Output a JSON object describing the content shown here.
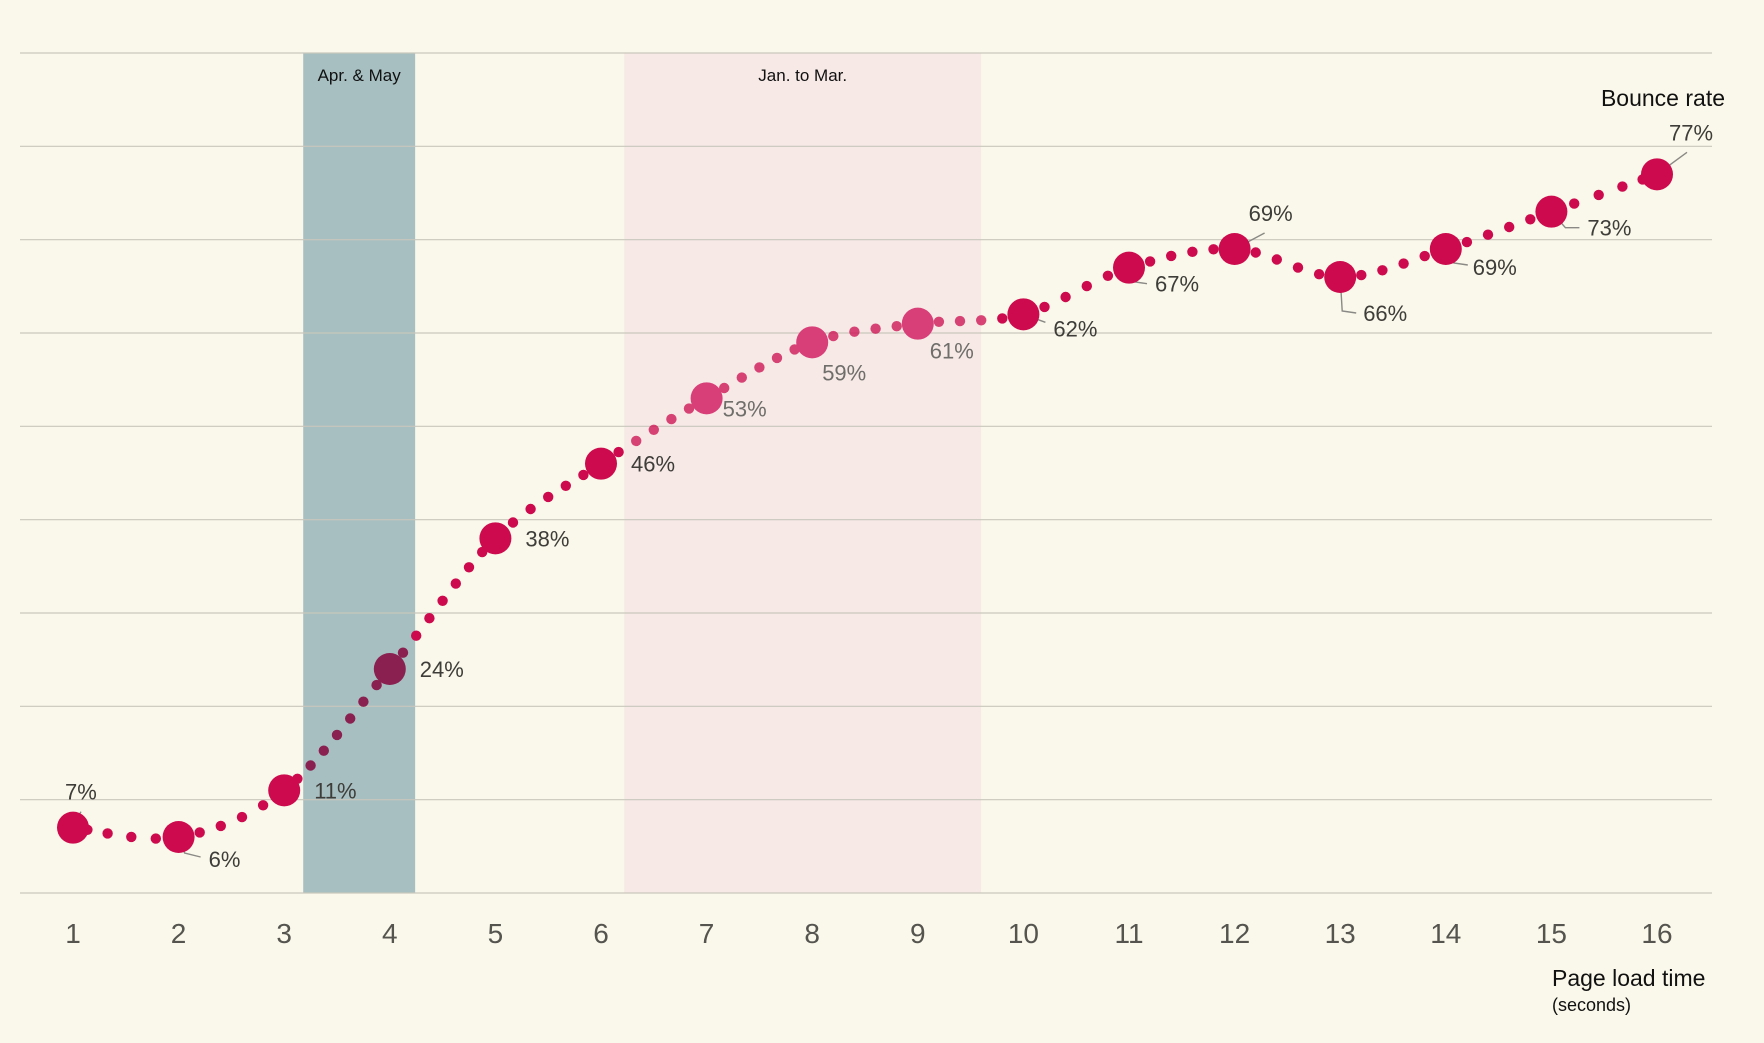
{
  "chart_data": {
    "type": "line",
    "y_title": "Bounce rate",
    "x_title": "Page load time",
    "x_unit": "(seconds)",
    "x": [
      1,
      2,
      3,
      4,
      5,
      6,
      7,
      8,
      9,
      10,
      11,
      12,
      13,
      14,
      15,
      16
    ],
    "series": [
      {
        "values": [
          7,
          6,
          11,
          24,
          38,
          46,
          53,
          59,
          61,
          62,
          67,
          69,
          66,
          69,
          73,
          77
        ],
        "labels": [
          "7%",
          "6%",
          "11%",
          "24%",
          "38%",
          "46%",
          "53%",
          "59%",
          "61%",
          "62%",
          "67%",
          "69%",
          "66%",
          "69%",
          "73%",
          "77%"
        ],
        "color": "#cc0a4d"
      }
    ],
    "ylim": [
      0,
      90
    ],
    "xlim": [
      0.5,
      16.5
    ],
    "grid": "horizontal",
    "line_style": "dotted",
    "bands": [
      {
        "label": "Apr. & May",
        "x_start": 3.18,
        "x_end": 4.24,
        "color": "#a7bfc1"
      },
      {
        "label": "Jan. to Mar.",
        "x_start": 6.22,
        "x_end": 9.6,
        "color": "#f7e9e6"
      }
    ]
  }
}
